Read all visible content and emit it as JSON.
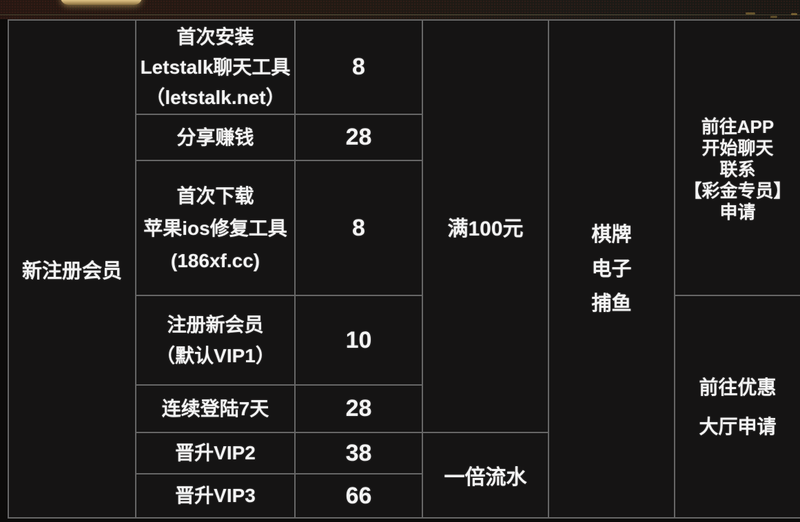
{
  "colors": {
    "gold": "#f2e3ab",
    "border": "#666666",
    "text": "#f4f4f4",
    "cell_bg": "#151414"
  },
  "table": {
    "member": "新注册会员",
    "rows": [
      {
        "lines": [
          "首次安装",
          "Letstalk聊天工具",
          "（letstalk.net）"
        ],
        "amount": "8"
      },
      {
        "lines": [
          "分享赚钱"
        ],
        "amount": "28"
      },
      {
        "lines": [
          "首次下载",
          "苹果ios修复工具",
          "(186xf.cc)"
        ],
        "amount": "8"
      },
      {
        "lines": [
          "注册新会员",
          "（默认VIP1）"
        ],
        "amount": "10"
      },
      {
        "lines": [
          "连续登陆7天"
        ],
        "amount": "28"
      },
      {
        "lines": [
          "晋升VIP2"
        ],
        "amount": "38"
      },
      {
        "lines": [
          "晋升VIP3"
        ],
        "amount": "66"
      }
    ],
    "deposit_requirement": "满100元",
    "turnover_requirement": "一倍流水",
    "game_types": [
      "棋牌",
      "电子",
      "捕鱼"
    ],
    "apply_top_lines": [
      "前往APP",
      "开始聊天",
      "联系",
      "【彩金专员】",
      "申请"
    ],
    "apply_bottom_lines": [
      "前往优惠",
      "大厅申请"
    ]
  }
}
